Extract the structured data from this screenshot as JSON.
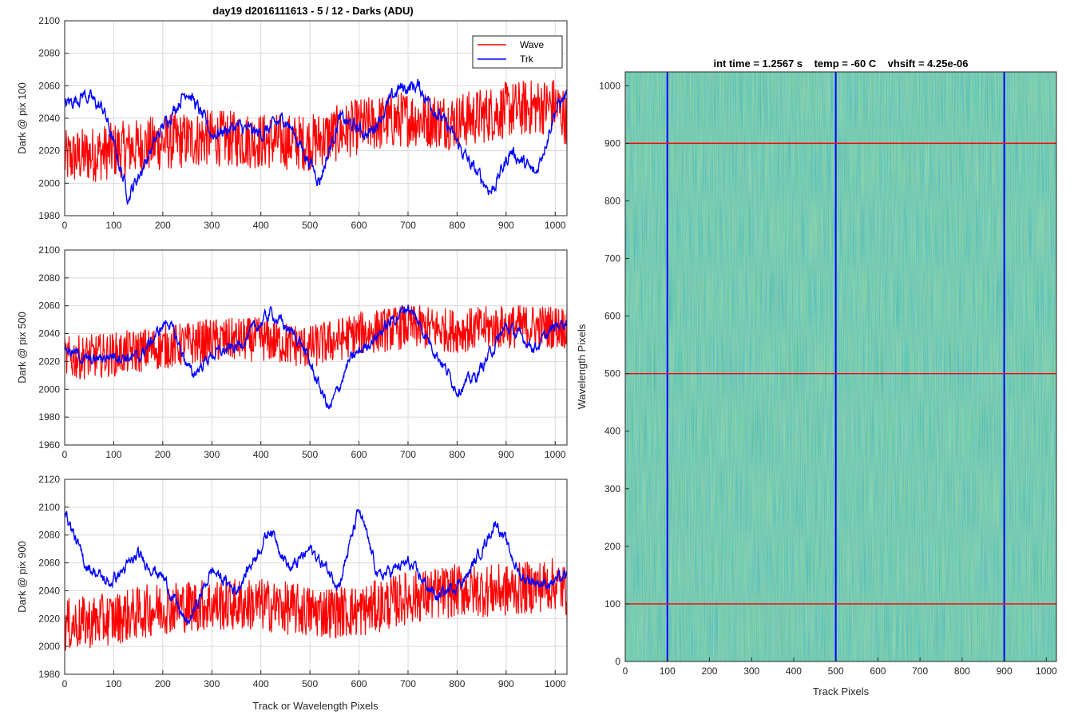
{
  "figure_title": "day19 d2016111613 - 5 / 12 - Darks (ADU)",
  "colors": {
    "wave": "#ff0000",
    "trk": "#0000ff",
    "grid": "#d9d9d9",
    "axis": "#262626"
  },
  "chart_data": [
    {
      "type": "line",
      "title": "day19 d2016111613 - 5 / 12 - Darks (ADU)",
      "ylabel": "Dark @ pix 100",
      "xlabel": "",
      "xlim": [
        0,
        1024
      ],
      "ylim": [
        1980,
        2100
      ],
      "xticks": [
        0,
        100,
        200,
        300,
        400,
        500,
        600,
        700,
        800,
        900,
        1000
      ],
      "yticks": [
        1980,
        2000,
        2020,
        2040,
        2060,
        2080,
        2100
      ],
      "grid": true,
      "legend": {
        "position": "top-right",
        "entries": [
          "Wave",
          "Trk"
        ]
      },
      "series": [
        {
          "name": "Wave",
          "color": "#ff0000",
          "mean": 2025,
          "noise": 11,
          "x": [
            0,
            100,
            200,
            300,
            400,
            500,
            600,
            700,
            800,
            900,
            1000,
            1024
          ],
          "values": [
            2015,
            2020,
            2025,
            2028,
            2026,
            2025,
            2035,
            2040,
            2038,
            2045,
            2048,
            2040
          ]
        },
        {
          "name": "Trk",
          "color": "#0000ff",
          "mean": 2030,
          "noise": 4,
          "x": [
            0,
            40,
            80,
            130,
            200,
            250,
            300,
            350,
            400,
            450,
            520,
            560,
            620,
            680,
            720,
            780,
            830,
            870,
            910,
            960,
            1000,
            1024
          ],
          "values": [
            2048,
            2055,
            2045,
            1992,
            2035,
            2058,
            2030,
            2035,
            2030,
            2040,
            2002,
            2040,
            2030,
            2058,
            2060,
            2035,
            2010,
            1995,
            2020,
            2005,
            2045,
            2055
          ]
        }
      ]
    },
    {
      "type": "line",
      "ylabel": "Dark @ pix 500",
      "xlabel": "",
      "xlim": [
        0,
        1024
      ],
      "ylim": [
        1960,
        2100
      ],
      "xticks": [
        0,
        100,
        200,
        300,
        400,
        500,
        600,
        700,
        800,
        900,
        1000
      ],
      "yticks": [
        1960,
        1980,
        2000,
        2020,
        2040,
        2060,
        2080,
        2100
      ],
      "grid": true,
      "series": [
        {
          "name": "Wave",
          "color": "#ff0000",
          "mean": 2030,
          "noise": 10,
          "x": [
            0,
            100,
            200,
            300,
            400,
            500,
            600,
            700,
            800,
            900,
            1000,
            1024
          ],
          "values": [
            2022,
            2025,
            2030,
            2035,
            2036,
            2030,
            2040,
            2045,
            2042,
            2045,
            2045,
            2045
          ]
        },
        {
          "name": "Trk",
          "color": "#0000ff",
          "mean": 2025,
          "noise": 4,
          "x": [
            0,
            50,
            100,
            150,
            210,
            260,
            300,
            350,
            420,
            480,
            540,
            580,
            640,
            700,
            760,
            800,
            840,
            900,
            960,
            1000,
            1024
          ],
          "values": [
            2030,
            2020,
            2025,
            2022,
            2050,
            2010,
            2025,
            2030,
            2055,
            2035,
            1985,
            2020,
            2040,
            2060,
            2025,
            2000,
            2010,
            2045,
            2030,
            2045,
            2050
          ]
        }
      ]
    },
    {
      "type": "line",
      "ylabel": "Dark @ pix 900",
      "xlabel": "Track or Wavelength Pixels",
      "xlim": [
        0,
        1024
      ],
      "ylim": [
        1980,
        2120
      ],
      "xticks": [
        0,
        100,
        200,
        300,
        400,
        500,
        600,
        700,
        800,
        900,
        1000
      ],
      "yticks": [
        1980,
        2000,
        2020,
        2040,
        2060,
        2080,
        2100,
        2120
      ],
      "grid": true,
      "series": [
        {
          "name": "Wave",
          "color": "#ff0000",
          "mean": 2030,
          "noise": 12,
          "x": [
            0,
            100,
            200,
            300,
            400,
            500,
            600,
            700,
            800,
            900,
            1000,
            1024
          ],
          "values": [
            2015,
            2020,
            2028,
            2030,
            2030,
            2025,
            2025,
            2035,
            2040,
            2040,
            2045,
            2040
          ]
        },
        {
          "name": "Trk",
          "color": "#0000ff",
          "mean": 2050,
          "noise": 4,
          "x": [
            0,
            40,
            90,
            150,
            200,
            250,
            300,
            350,
            420,
            460,
            500,
            560,
            600,
            640,
            700,
            760,
            820,
            880,
            930,
            980,
            1024
          ],
          "values": [
            2098,
            2060,
            2045,
            2065,
            2050,
            2015,
            2055,
            2040,
            2085,
            2055,
            2070,
            2045,
            2098,
            2050,
            2060,
            2035,
            2050,
            2090,
            2050,
            2045,
            2050
          ]
        }
      ]
    },
    {
      "type": "heatmap",
      "title": "int time = 1.2567 s    temp = -60 C    vhsift = 4.25e-06",
      "xlabel": "Track Pixels",
      "ylabel": "Wavelength Pixels",
      "xlim": [
        0,
        1024
      ],
      "ylim": [
        0,
        1024
      ],
      "xticks": [
        0,
        100,
        200,
        300,
        400,
        500,
        600,
        700,
        800,
        900,
        1000
      ],
      "yticks": [
        0,
        100,
        200,
        300,
        400,
        500,
        600,
        700,
        800,
        900,
        1000
      ],
      "colormap": "parula",
      "base_color": "#3aa8a8",
      "vertical_markers": {
        "color": "#0000ff",
        "values": [
          100,
          500,
          900
        ]
      },
      "horizontal_markers": {
        "color": "#ff0000",
        "values": [
          100,
          500,
          900
        ]
      }
    }
  ]
}
